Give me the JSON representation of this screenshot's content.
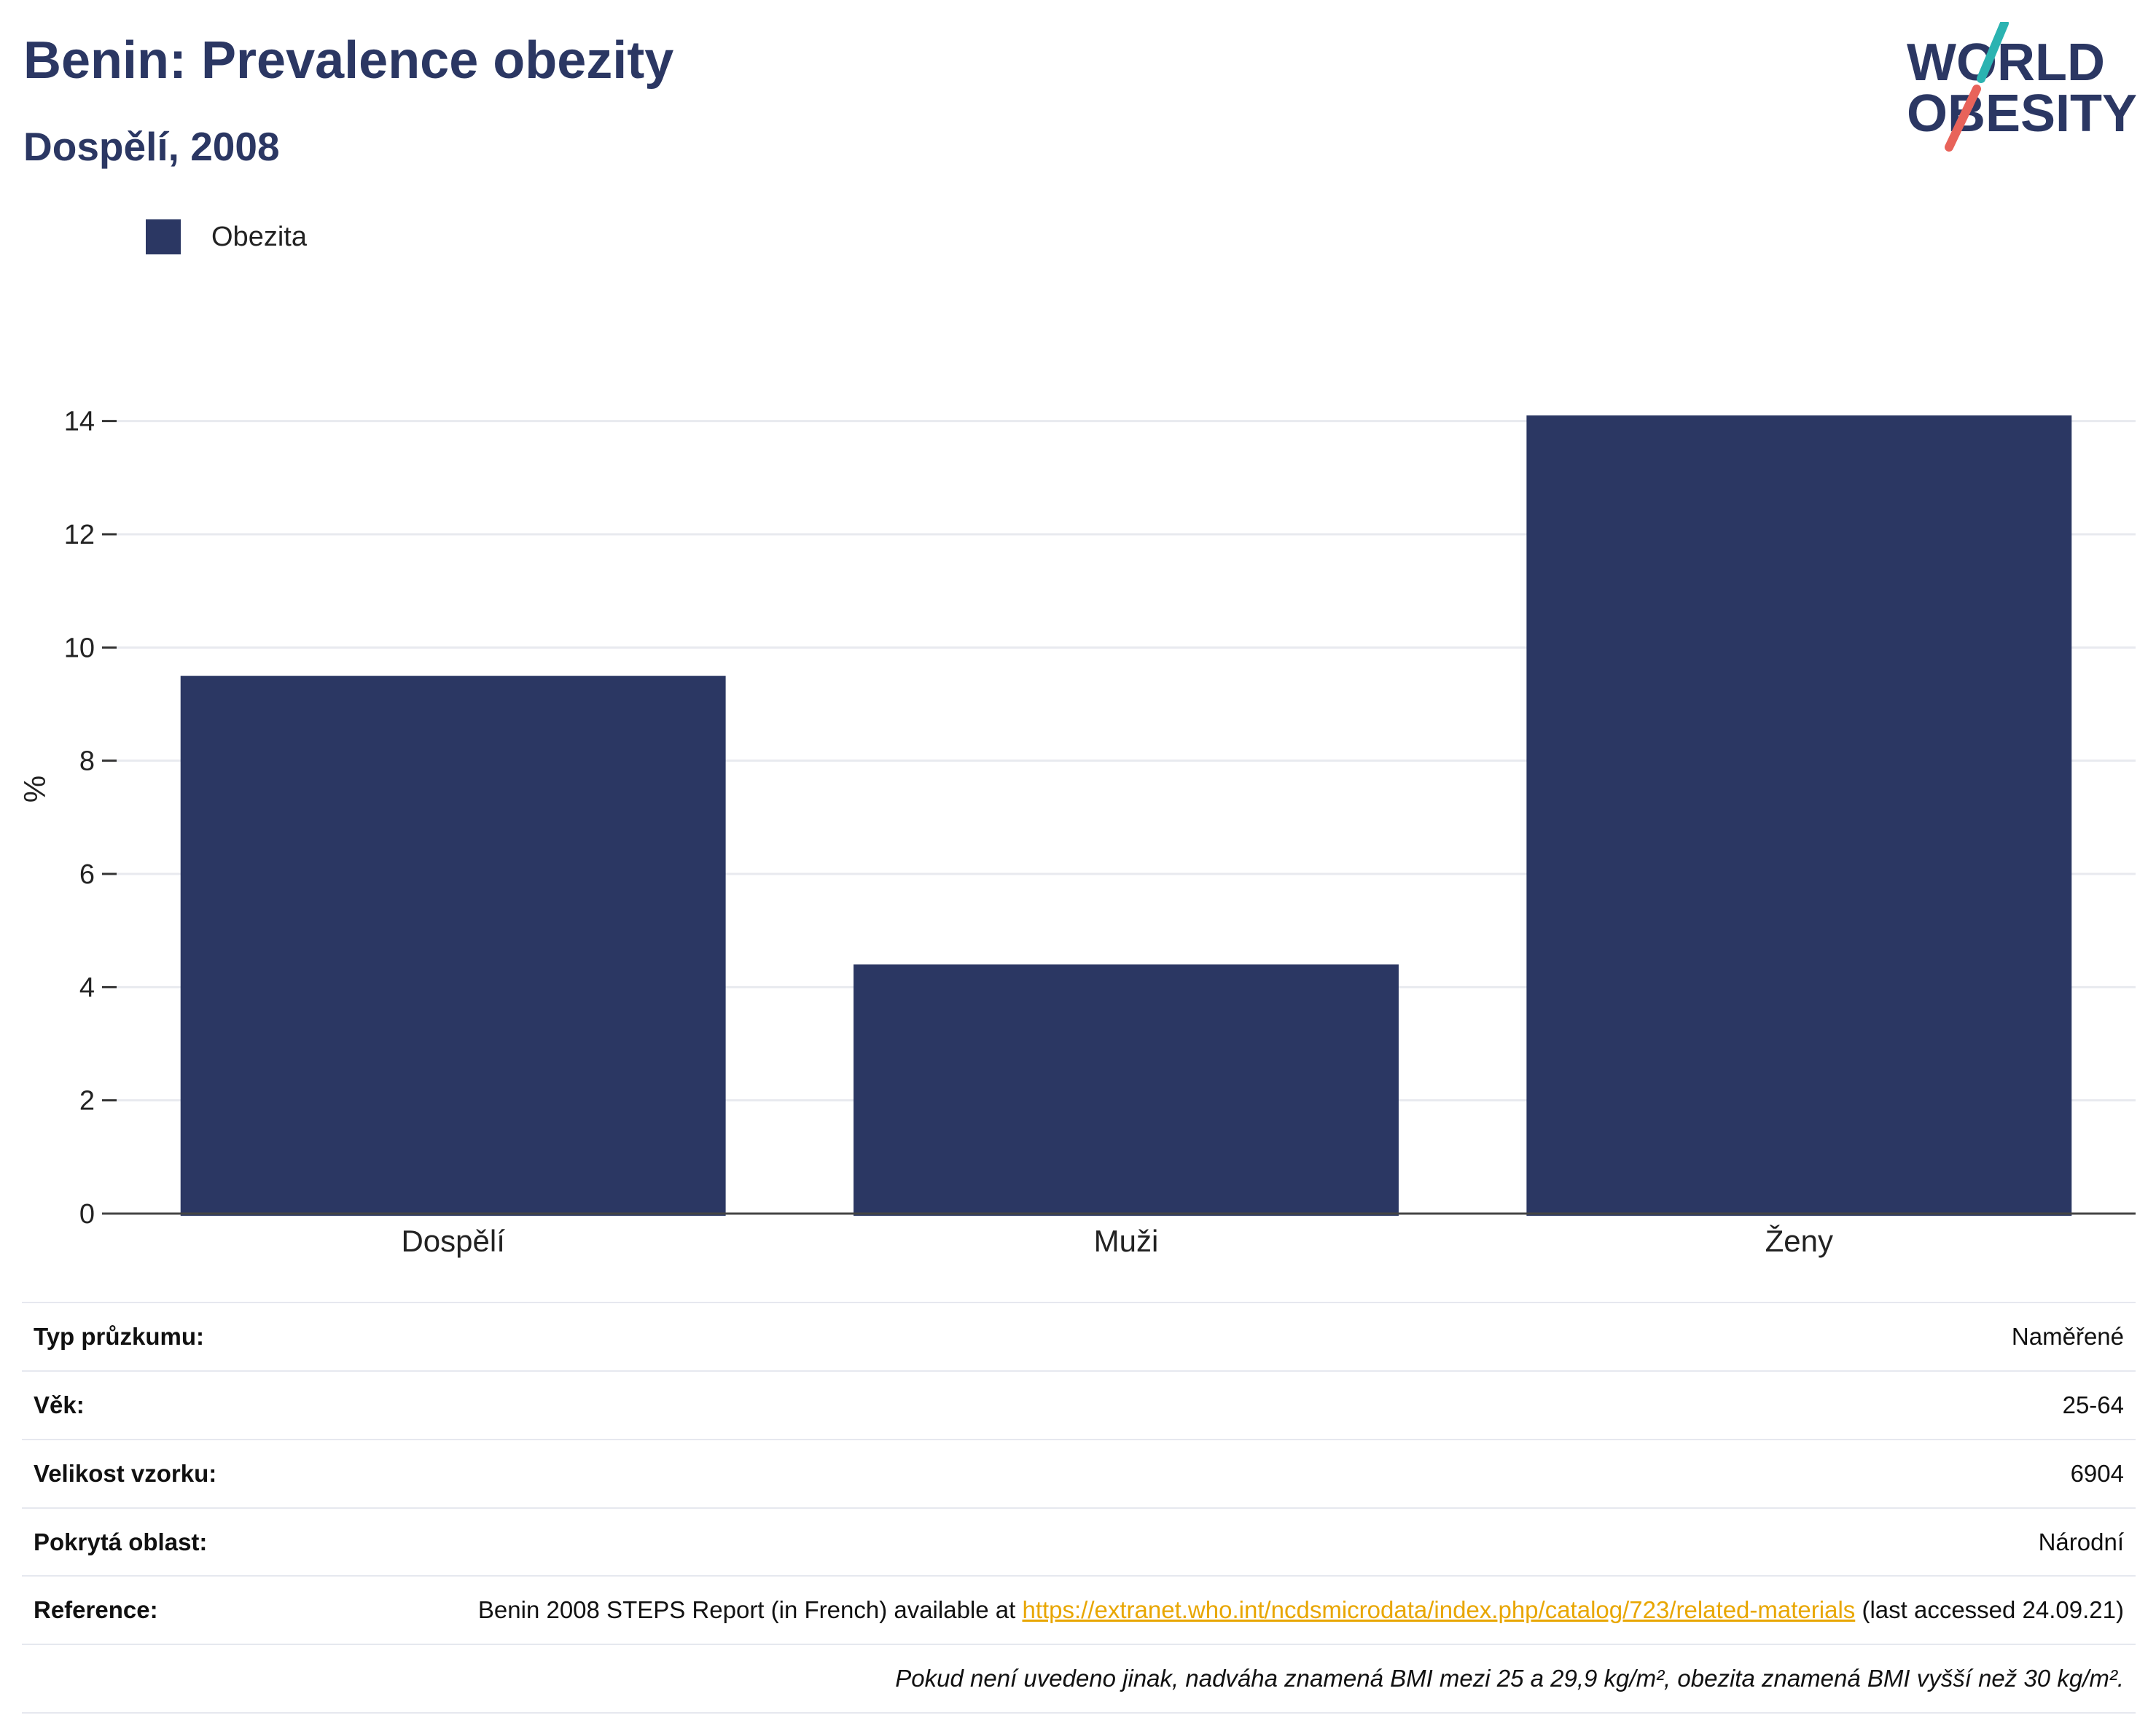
{
  "title": "Benin: Prevalence obezity",
  "subtitle": "Dospělí, 2008",
  "logo": {
    "line1": "WORLD",
    "line2": "OBESITY",
    "colors": {
      "text": "#2b3763",
      "slash_top": "#2bb3b1",
      "slash_bottom": "#e8635a"
    }
  },
  "legend": [
    {
      "label": "Obezita",
      "color": "#2b3763"
    }
  ],
  "chart_data": {
    "type": "bar",
    "categories": [
      "Dospělí",
      "Muži",
      "Ženy"
    ],
    "series": [
      {
        "name": "Obezita",
        "values": [
          9.5,
          4.4,
          14.1
        ],
        "color": "#2b3763"
      }
    ],
    "ylabel": "%",
    "xlabel": "",
    "ylim": [
      0,
      15
    ],
    "yticks": [
      0,
      2,
      4,
      6,
      8,
      10,
      12,
      14
    ],
    "grid": true,
    "legend_position": "top-left"
  },
  "info": {
    "rows": [
      {
        "key": "Typ průzkumu:",
        "value": "Naměřené"
      },
      {
        "key": "Věk:",
        "value": "25-64"
      },
      {
        "key": "Velikost vzorku:",
        "value": "6904"
      },
      {
        "key": "Pokrytá oblast:",
        "value": "Národní"
      }
    ],
    "reference": {
      "key": "Reference:",
      "prefix": "Benin 2008 STEPS Report (in French) available at ",
      "link": "https://extranet.who.int/ncdsmicrodata/index.php/catalog/723/related-materials",
      "suffix": " (last accessed 24.09.21)"
    },
    "note": "Pokud není uvedeno jinak, nadváha znamená BMI mezi 25 a 29,9 kg/m², obezita znamená BMI vyšší než 30 kg/m²."
  }
}
